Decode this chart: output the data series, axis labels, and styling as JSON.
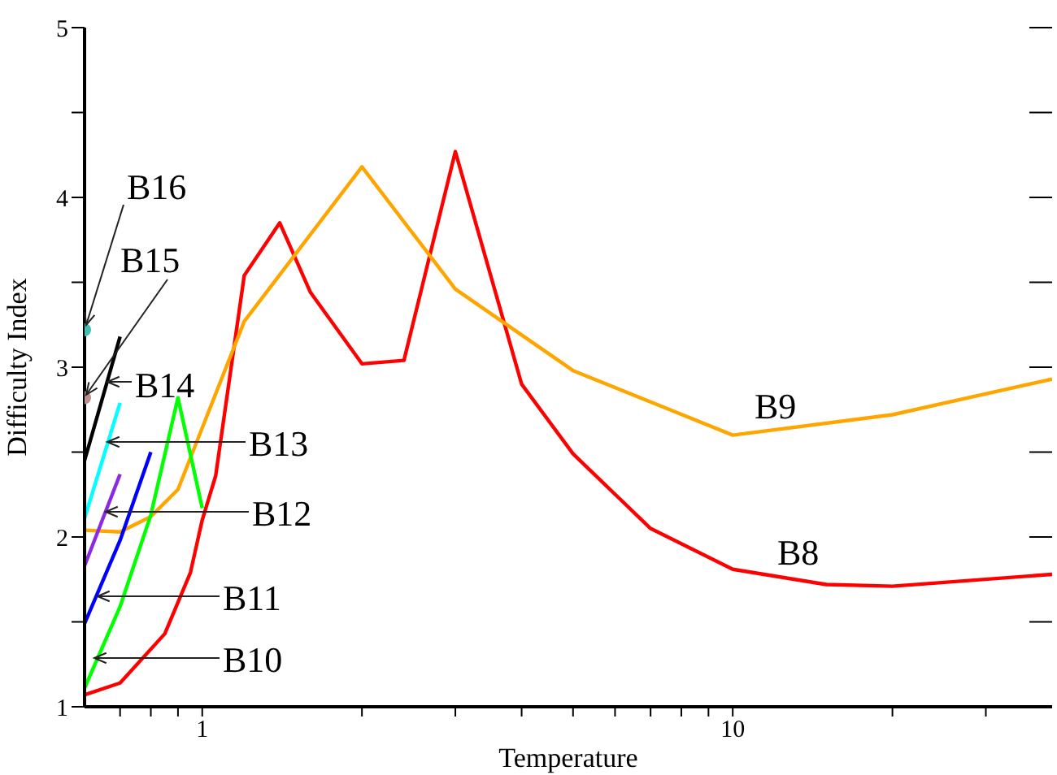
{
  "chart_data": {
    "type": "line",
    "xlabel": "Temperature",
    "ylabel": "Difficulty Index",
    "log": "x",
    "xlim": [
      0.6,
      40
    ],
    "ylim": [
      1,
      5
    ],
    "xticks": [
      {
        "value": 0.7,
        "label": null
      },
      {
        "value": 0.8,
        "label": null
      },
      {
        "value": 0.9,
        "label": null
      },
      1,
      {
        "value": 2,
        "label": null
      },
      {
        "value": 3,
        "label": null
      },
      {
        "value": 4,
        "label": null
      },
      {
        "value": 5,
        "label": null
      },
      {
        "value": 6,
        "label": null
      },
      {
        "value": 7,
        "label": null
      },
      {
        "value": 8,
        "label": null
      },
      {
        "value": 9,
        "label": null
      },
      10,
      {
        "value": 20,
        "label": null
      },
      {
        "value": 30,
        "label": null
      }
    ],
    "yticks": [
      1,
      {
        "value": 1.5,
        "label": null
      },
      2,
      {
        "value": 2.5,
        "label": null
      },
      3,
      {
        "value": 3.5,
        "label": null
      },
      4,
      {
        "value": 4.5,
        "label": null
      },
      5
    ],
    "series": [
      {
        "name": "B8",
        "color": "#ff0000",
        "x": [
          0.6,
          0.7,
          0.85,
          0.95,
          1.0,
          1.06,
          1.2,
          1.4,
          1.6,
          2,
          2.4,
          3,
          4,
          5,
          7,
          10,
          15,
          20,
          40
        ],
        "values": [
          1.07,
          1.14,
          1.43,
          1.79,
          2.1,
          2.36,
          3.54,
          3.85,
          3.44,
          3.02,
          3.04,
          4.27,
          2.9,
          2.49,
          2.05,
          1.81,
          1.72,
          1.71,
          1.78
        ]
      },
      {
        "name": "B9",
        "color": "#ffa500",
        "x": [
          0.6,
          0.7,
          0.8,
          0.9,
          1.2,
          2,
          3,
          5,
          10,
          20,
          40
        ],
        "values": [
          2.04,
          2.03,
          2.12,
          2.28,
          3.27,
          4.18,
          3.46,
          2.98,
          2.6,
          2.72,
          2.93
        ]
      },
      {
        "name": "B10",
        "color": "#00ff00",
        "x": [
          0.6,
          0.7,
          0.8,
          0.9,
          1.0
        ],
        "values": [
          1.11,
          1.59,
          2.13,
          2.82,
          2.17
        ]
      },
      {
        "name": "B11",
        "color": "#0000ff",
        "x": [
          0.6,
          0.7,
          0.8
        ],
        "values": [
          1.49,
          1.98,
          2.5
        ]
      },
      {
        "name": "B12",
        "color": "#8a2be2",
        "x": [
          0.6,
          0.7
        ],
        "values": [
          1.83,
          2.37
        ]
      },
      {
        "name": "B13",
        "color": "#00ffff",
        "x": [
          0.6,
          0.7
        ],
        "values": [
          2.11,
          2.79
        ]
      },
      {
        "name": "B14",
        "color": "#000000",
        "x": [
          0.6,
          0.7
        ],
        "values": [
          2.45,
          3.18
        ]
      },
      {
        "name": "B15",
        "type": "scatter",
        "color": "#bc8f8f",
        "x": [
          0.6
        ],
        "values": [
          2.82
        ]
      },
      {
        "name": "B16",
        "type": "scatter",
        "color": "#40c0b0",
        "x": [
          0.6
        ],
        "values": [
          3.22
        ]
      }
    ]
  }
}
